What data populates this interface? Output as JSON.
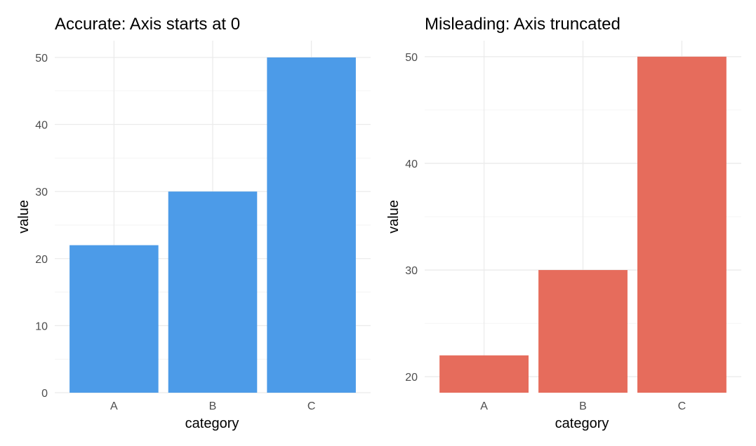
{
  "chart_data": [
    {
      "type": "bar",
      "title": "Accurate: Axis starts at 0",
      "xlabel": "category",
      "ylabel": "value",
      "categories": [
        "A",
        "B",
        "C"
      ],
      "values": [
        22,
        30,
        50
      ],
      "ylim": [
        0,
        52.5
      ],
      "yticks": [
        0,
        10,
        20,
        30,
        40,
        50
      ],
      "grid": true,
      "color": "#4c9be8"
    },
    {
      "type": "bar",
      "title": "Misleading: Axis truncated",
      "xlabel": "category",
      "ylabel": "value",
      "categories": [
        "A",
        "B",
        "C"
      ],
      "values": [
        22,
        30,
        50
      ],
      "ylim": [
        18.5,
        51.5
      ],
      "bar_base": 18.5,
      "yticks": [
        20,
        30,
        40,
        50
      ],
      "grid": true,
      "color": "#e66c5c"
    }
  ]
}
